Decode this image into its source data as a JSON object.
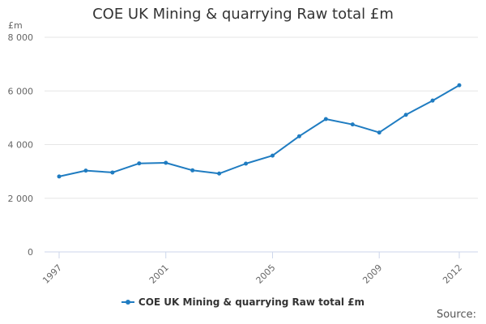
{
  "colors": {
    "series": "#1f7cc1",
    "grid": "#e6e6e6",
    "axis": "#ccd6eb"
  },
  "source_label": "Source:",
  "chart_data": {
    "type": "line",
    "title": "COE UK Mining & quarrying Raw total £m",
    "ylabel": "£m",
    "xlabel": "",
    "ylim": [
      0,
      8000
    ],
    "xlim": [
      1997,
      2012
    ],
    "y_ticks": [
      0,
      2000,
      4000,
      6000,
      8000
    ],
    "y_tick_labels": [
      "0",
      "2 000",
      "4 000",
      "6 000",
      "8 000"
    ],
    "x_ticks": [
      1997,
      2001,
      2005,
      2009,
      2012
    ],
    "x_tick_labels": [
      "1997",
      "2001",
      "2005",
      "2009",
      "2012"
    ],
    "grid": true,
    "legend": "bottom",
    "x": [
      1997,
      1998,
      1999,
      2000,
      2001,
      2002,
      2003,
      2004,
      2005,
      2006,
      2007,
      2008,
      2009,
      2010,
      2011,
      2012
    ],
    "series": [
      {
        "name": "COE UK Mining & quarrying Raw total £m",
        "values": [
          2810,
          3030,
          2960,
          3300,
          3320,
          3040,
          2920,
          3290,
          3590,
          4310,
          4950,
          4750,
          4450,
          5110,
          5640,
          6210
        ]
      }
    ]
  }
}
